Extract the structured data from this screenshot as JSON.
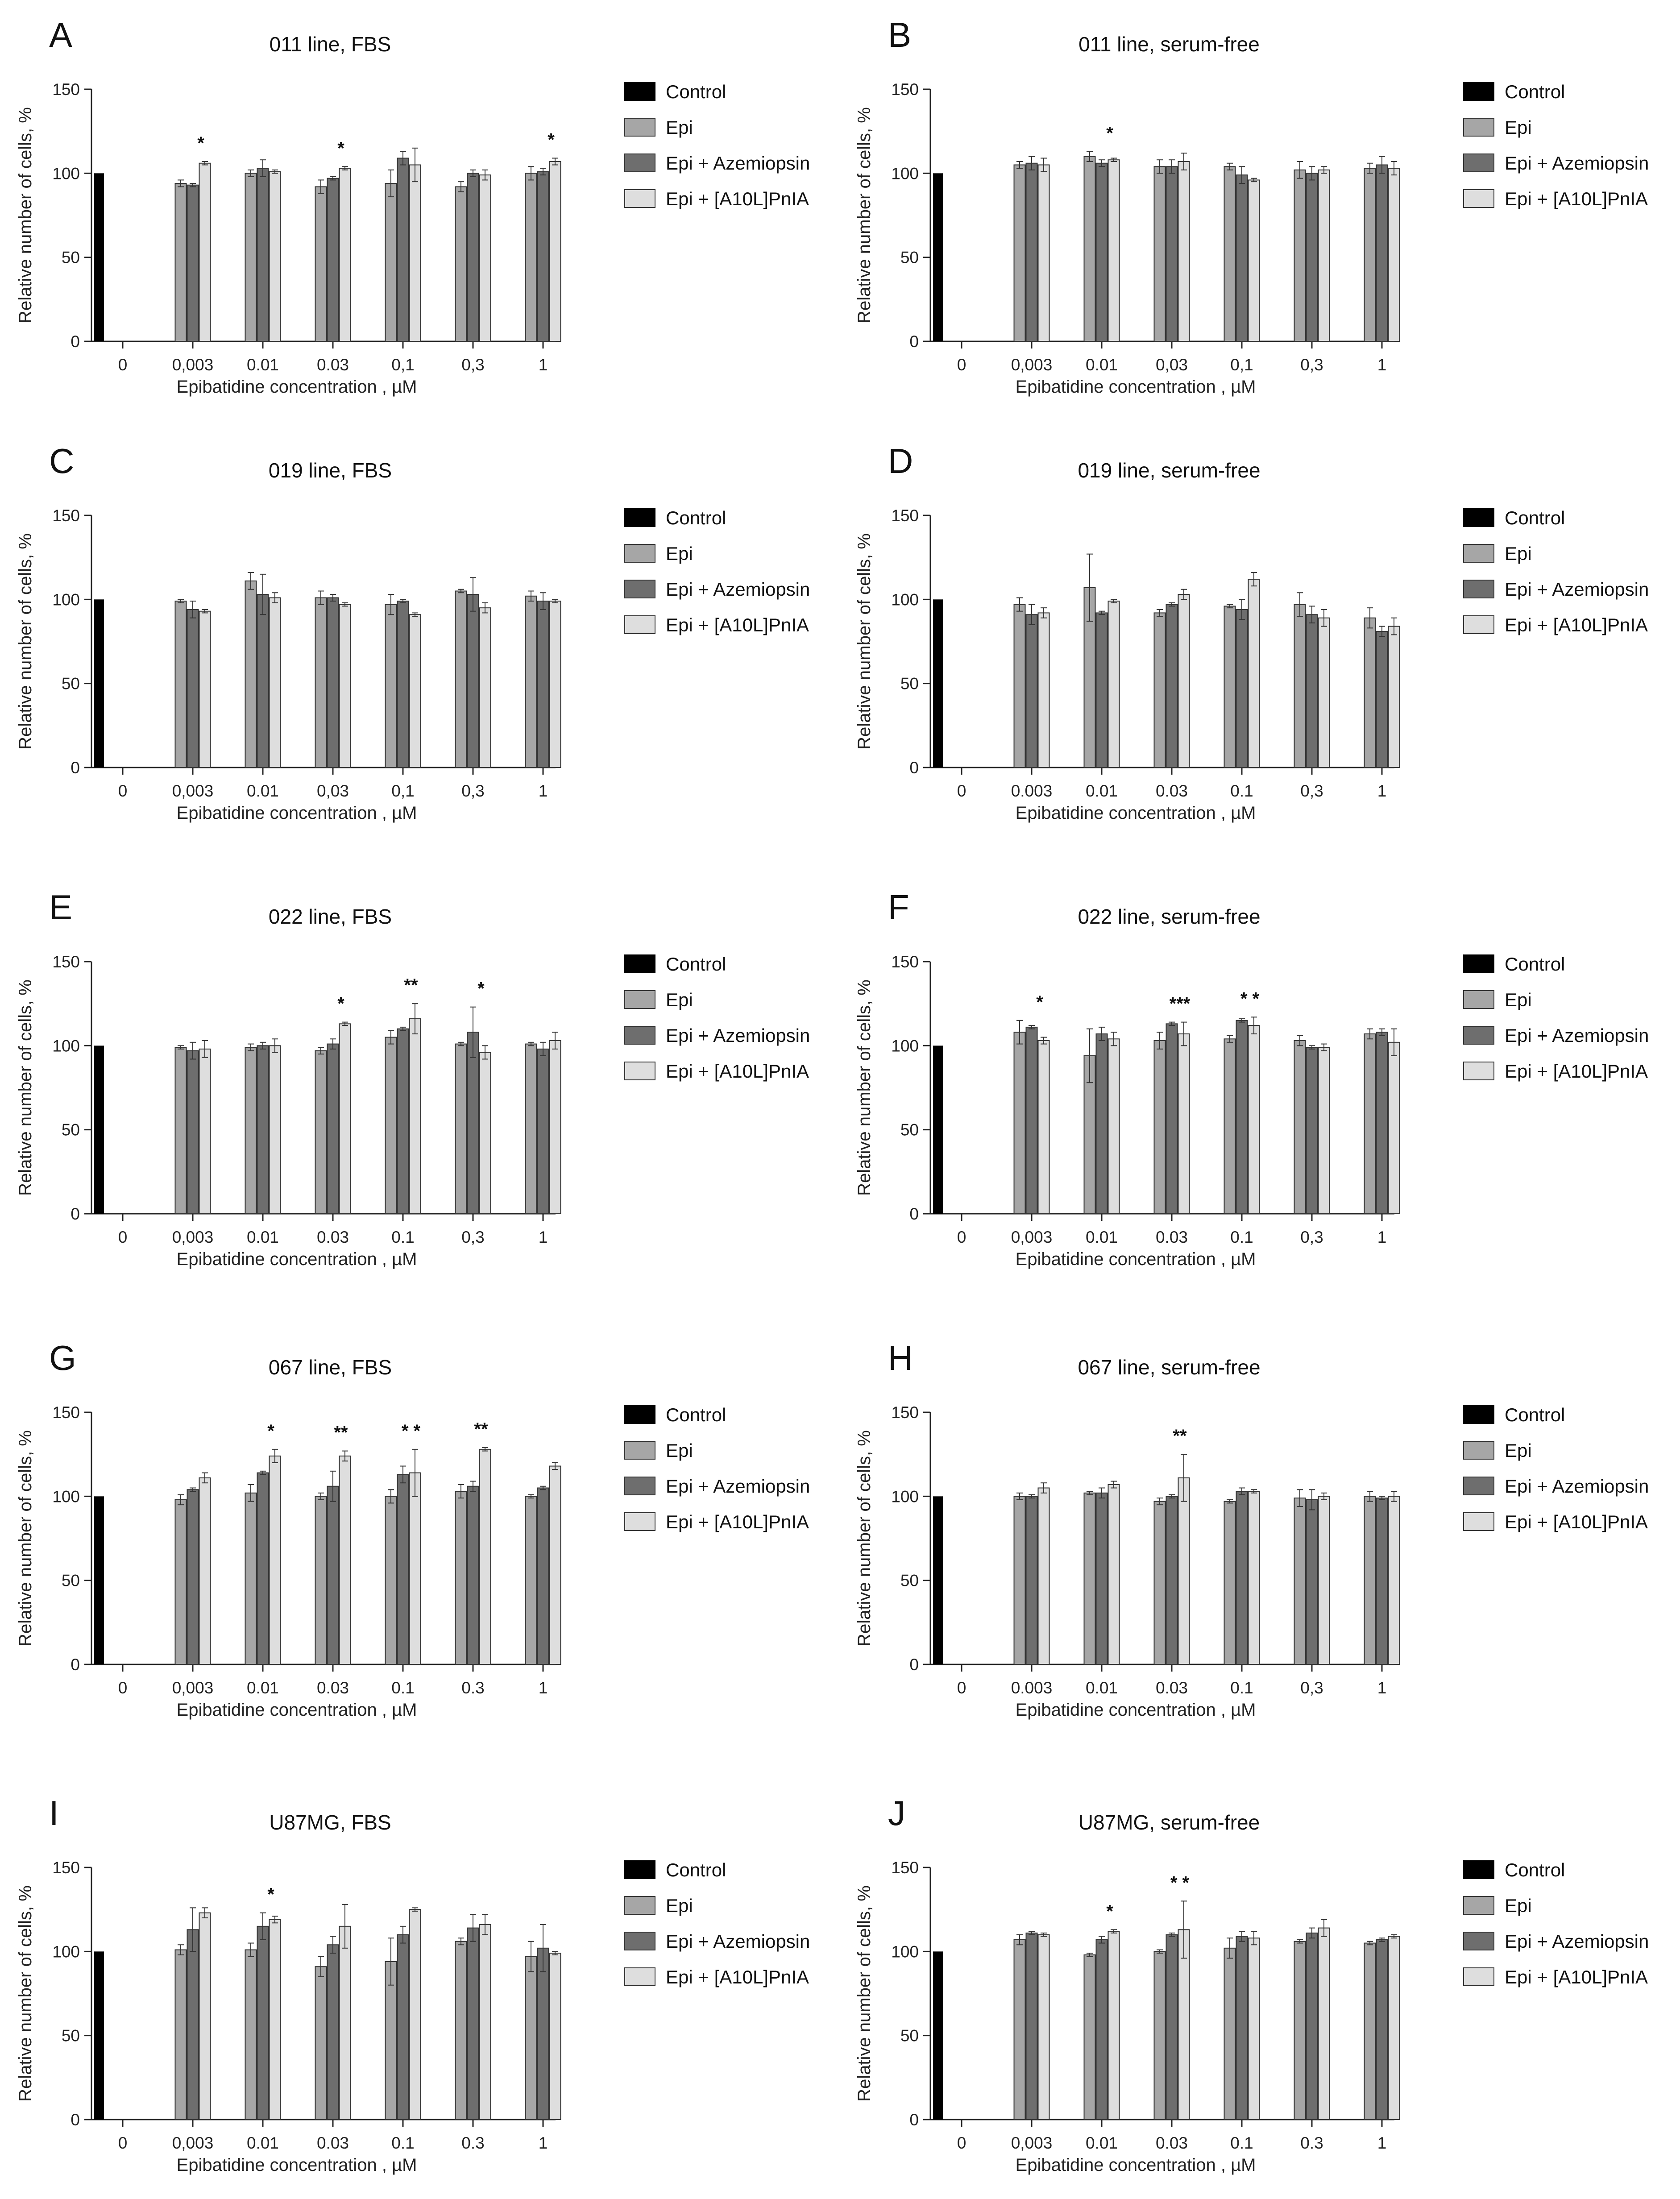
{
  "figure": {
    "colors": {
      "control": "#000000",
      "epi": "#a6a6a6",
      "azemiopsin": "#6e6e6e",
      "a10l": "#dedede",
      "stroke": "#333333",
      "axis": "#222222"
    },
    "legend": [
      "Control",
      "Epi",
      "Epi + Azemiopsin",
      "Epi + [A10L]PnIA"
    ],
    "xlabel": "Epibatidine concentration , µM",
    "ylabel": "Relative number of cells, %",
    "y_ticks": [
      "0",
      "50",
      "100",
      "150"
    ]
  },
  "chart_data": [
    {
      "type": "bar",
      "panel": "A",
      "title": "011 line, FBS",
      "categories": [
        "0",
        "0,003",
        "0.01",
        "0.03",
        "0,1",
        "0,3",
        "1"
      ],
      "ylim": [
        0,
        150
      ],
      "control": 100,
      "series": [
        {
          "name": "Epi",
          "values": [
            null,
            94,
            100,
            92,
            94,
            92,
            100
          ]
        },
        {
          "name": "Epi + Azemiopsin",
          "values": [
            null,
            93,
            103,
            97,
            109,
            100,
            101
          ]
        },
        {
          "name": "Epi + [A10L]PnIA",
          "values": [
            null,
            106,
            101,
            103,
            105,
            99,
            107
          ]
        }
      ],
      "errors": [
        [
          null,
          2,
          2,
          4,
          8,
          3,
          4
        ],
        [
          null,
          1,
          5,
          1,
          4,
          2,
          2
        ],
        [
          null,
          1,
          1,
          1,
          10,
          3,
          2
        ]
      ],
      "annotations": [
        {
          "category": "0,003",
          "text": "*"
        },
        {
          "category": "0.03",
          "text": "*"
        },
        {
          "category": "1",
          "text": "*"
        }
      ]
    },
    {
      "type": "bar",
      "panel": "B",
      "title": "011 line, serum-free",
      "categories": [
        "0",
        "0,003",
        "0.01",
        "0,03",
        "0,1",
        "0,3",
        "1"
      ],
      "ylim": [
        0,
        150
      ],
      "control": 100,
      "series": [
        {
          "name": "Epi",
          "values": [
            null,
            105,
            110,
            104,
            104,
            102,
            103
          ]
        },
        {
          "name": "Epi + Azemiopsin",
          "values": [
            null,
            106,
            106,
            104,
            99,
            100,
            105
          ]
        },
        {
          "name": "Epi + [A10L]PnIA",
          "values": [
            null,
            105,
            108,
            107,
            96,
            102,
            103
          ]
        }
      ],
      "errors": [
        [
          null,
          2,
          3,
          4,
          2,
          5,
          3
        ],
        [
          null,
          4,
          2,
          4,
          5,
          4,
          5
        ],
        [
          null,
          4,
          1,
          5,
          1,
          2,
          4
        ]
      ],
      "annotations": [
        {
          "category": "0.01",
          "text": "*"
        }
      ]
    },
    {
      "type": "bar",
      "panel": "C",
      "title": "019 line, FBS",
      "categories": [
        "0",
        "0,003",
        "0.01",
        "0,03",
        "0,1",
        "0,3",
        "1"
      ],
      "ylim": [
        0,
        150
      ],
      "control": 100,
      "series": [
        {
          "name": "Epi",
          "values": [
            null,
            99,
            111,
            101,
            97,
            105,
            102
          ]
        },
        {
          "name": "Epi + Azemiopsin",
          "values": [
            null,
            94,
            103,
            101,
            99,
            103,
            99
          ]
        },
        {
          "name": "Epi + [A10L]PnIA",
          "values": [
            null,
            93,
            101,
            97,
            91,
            95,
            99
          ]
        }
      ],
      "errors": [
        [
          null,
          1,
          5,
          4,
          6,
          1,
          3
        ],
        [
          null,
          5,
          12,
          2,
          1,
          10,
          5
        ],
        [
          null,
          1,
          3,
          1,
          1,
          3,
          1
        ]
      ],
      "annotations": []
    },
    {
      "type": "bar",
      "panel": "D",
      "title": "019 line, serum-free",
      "categories": [
        "0",
        "0.003",
        "0.01",
        "0.03",
        "0.1",
        "0,3",
        "1"
      ],
      "ylim": [
        0,
        150
      ],
      "control": 100,
      "series": [
        {
          "name": "Epi",
          "values": [
            null,
            97,
            107,
            92,
            96,
            97,
            89
          ]
        },
        {
          "name": "Epi + Azemiopsin",
          "values": [
            null,
            91,
            92,
            97,
            94,
            91,
            81
          ]
        },
        {
          "name": "Epi + [A10L]PnIA",
          "values": [
            null,
            92,
            99,
            103,
            112,
            89,
            84
          ]
        }
      ],
      "errors": [
        [
          null,
          4,
          20,
          2,
          1,
          7,
          6
        ],
        [
          null,
          6,
          1,
          1,
          6,
          5,
          3
        ],
        [
          null,
          3,
          1,
          3,
          4,
          5,
          5
        ]
      ],
      "annotations": []
    },
    {
      "type": "bar",
      "panel": "E",
      "title": "022 line, FBS",
      "categories": [
        "0",
        "0,003",
        "0.01",
        "0.03",
        "0.1",
        "0,3",
        "1"
      ],
      "ylim": [
        0,
        150
      ],
      "control": 100,
      "series": [
        {
          "name": "Epi",
          "values": [
            null,
            99,
            99,
            97,
            105,
            101,
            101
          ]
        },
        {
          "name": "Epi + Azemiopsin",
          "values": [
            null,
            97,
            100,
            101,
            110,
            108,
            98
          ]
        },
        {
          "name": "Epi + [A10L]PnIA",
          "values": [
            null,
            98,
            100,
            113,
            116,
            96,
            103
          ]
        }
      ],
      "errors": [
        [
          null,
          1,
          2,
          2,
          4,
          1,
          1
        ],
        [
          null,
          5,
          2,
          3,
          1,
          15,
          4
        ],
        [
          null,
          5,
          4,
          1,
          9,
          4,
          5
        ]
      ],
      "annotations": [
        {
          "category": "0.03",
          "text": "*"
        },
        {
          "category": "0.1",
          "text": "**"
        },
        {
          "category": "0,3",
          "text": "*"
        }
      ]
    },
    {
      "type": "bar",
      "panel": "F",
      "title": "022 line, serum-free",
      "categories": [
        "0",
        "0,003",
        "0.01",
        "0.03",
        "0.1",
        "0,3",
        "1"
      ],
      "ylim": [
        0,
        150
      ],
      "control": 100,
      "series": [
        {
          "name": "Epi",
          "values": [
            null,
            108,
            94,
            103,
            104,
            103,
            107
          ]
        },
        {
          "name": "Epi + Azemiopsin",
          "values": [
            null,
            111,
            107,
            113,
            115,
            99,
            108
          ]
        },
        {
          "name": "Epi + [A10L]PnIA",
          "values": [
            null,
            103,
            104,
            107,
            112,
            99,
            102
          ]
        }
      ],
      "errors": [
        [
          null,
          7,
          16,
          5,
          2,
          3,
          3
        ],
        [
          null,
          1,
          4,
          1,
          1,
          1,
          2
        ],
        [
          null,
          2,
          4,
          7,
          5,
          2,
          8
        ]
      ],
      "annotations": [
        {
          "category": "0,003",
          "text": "*"
        },
        {
          "category": "0.03",
          "text": "***"
        },
        {
          "category": "0.1",
          "text": "* *"
        }
      ]
    },
    {
      "type": "bar",
      "panel": "G",
      "title": "067 line, FBS",
      "categories": [
        "0",
        "0,003",
        "0.01",
        "0.03",
        "0.1",
        "0.3",
        "1"
      ],
      "ylim": [
        0,
        150
      ],
      "control": 100,
      "series": [
        {
          "name": "Epi",
          "values": [
            null,
            98,
            102,
            100,
            100,
            103,
            100
          ]
        },
        {
          "name": "Epi + Azemiopsin",
          "values": [
            null,
            104,
            114,
            106,
            113,
            106,
            105
          ]
        },
        {
          "name": "Epi + [A10L]PnIA",
          "values": [
            null,
            111,
            124,
            124,
            114,
            128,
            118
          ]
        }
      ],
      "errors": [
        [
          null,
          3,
          5,
          2,
          4,
          4,
          1
        ],
        [
          null,
          1,
          1,
          9,
          5,
          3,
          1
        ],
        [
          null,
          3,
          4,
          3,
          14,
          1,
          2
        ]
      ],
      "annotations": [
        {
          "category": "0.01",
          "text": "*"
        },
        {
          "category": "0.03",
          "text": "**"
        },
        {
          "category": "0.1",
          "text": "* *"
        },
        {
          "category": "0.3",
          "text": "**"
        }
      ]
    },
    {
      "type": "bar",
      "panel": "H",
      "title": "067 line, serum-free",
      "categories": [
        "0",
        "0.003",
        "0.01",
        "0.03",
        "0.1",
        "0,3",
        "1"
      ],
      "ylim": [
        0,
        150
      ],
      "control": 100,
      "series": [
        {
          "name": "Epi",
          "values": [
            null,
            100,
            102,
            97,
            97,
            99,
            100
          ]
        },
        {
          "name": "Epi + Azemiopsin",
          "values": [
            null,
            100,
            102,
            100,
            103,
            98,
            99
          ]
        },
        {
          "name": "Epi + [A10L]PnIA",
          "values": [
            null,
            105,
            107,
            111,
            103,
            100,
            100
          ]
        }
      ],
      "errors": [
        [
          null,
          2,
          1,
          2,
          1,
          5,
          3
        ],
        [
          null,
          1,
          3,
          1,
          2,
          6,
          1
        ],
        [
          null,
          3,
          2,
          14,
          1,
          2,
          3
        ]
      ],
      "annotations": [
        {
          "category": "0.03",
          "text": "**"
        }
      ]
    },
    {
      "type": "bar",
      "panel": "I",
      "title": "U87MG, FBS",
      "categories": [
        "0",
        "0,003",
        "0.01",
        "0.03",
        "0.1",
        "0.3",
        "1"
      ],
      "ylim": [
        0,
        150
      ],
      "control": 100,
      "series": [
        {
          "name": "Epi",
          "values": [
            null,
            101,
            101,
            91,
            94,
            106,
            97
          ]
        },
        {
          "name": "Epi + Azemiopsin",
          "values": [
            null,
            113,
            115,
            104,
            110,
            114,
            102
          ]
        },
        {
          "name": "Epi + [A10L]PnIA",
          "values": [
            null,
            123,
            119,
            115,
            125,
            116,
            99
          ]
        }
      ],
      "errors": [
        [
          null,
          3,
          4,
          6,
          14,
          2,
          9
        ],
        [
          null,
          13,
          8,
          5,
          5,
          8,
          14
        ],
        [
          null,
          3,
          2,
          13,
          1,
          6,
          1
        ]
      ],
      "annotations": [
        {
          "category": "0.01",
          "text": "*"
        }
      ]
    },
    {
      "type": "bar",
      "panel": "J",
      "title": "U87MG, serum-free",
      "categories": [
        "0",
        "0,003",
        "0.01",
        "0.03",
        "0.1",
        "0.3",
        "1"
      ],
      "ylim": [
        0,
        150
      ],
      "control": 100,
      "series": [
        {
          "name": "Epi",
          "values": [
            null,
            107,
            98,
            100,
            102,
            106,
            105
          ]
        },
        {
          "name": "Epi + Azemiopsin",
          "values": [
            null,
            111,
            107,
            110,
            109,
            111,
            107
          ]
        },
        {
          "name": "Epi + [A10L]PnIA",
          "values": [
            null,
            110,
            112,
            113,
            108,
            114,
            109
          ]
        }
      ],
      "errors": [
        [
          null,
          3,
          1,
          1,
          6,
          1,
          1
        ],
        [
          null,
          1,
          2,
          1,
          3,
          3,
          1
        ],
        [
          null,
          1,
          1,
          17,
          4,
          5,
          1
        ]
      ],
      "annotations": [
        {
          "category": "0.01",
          "text": "*"
        },
        {
          "category": "0.03",
          "text": "* *"
        }
      ]
    }
  ]
}
